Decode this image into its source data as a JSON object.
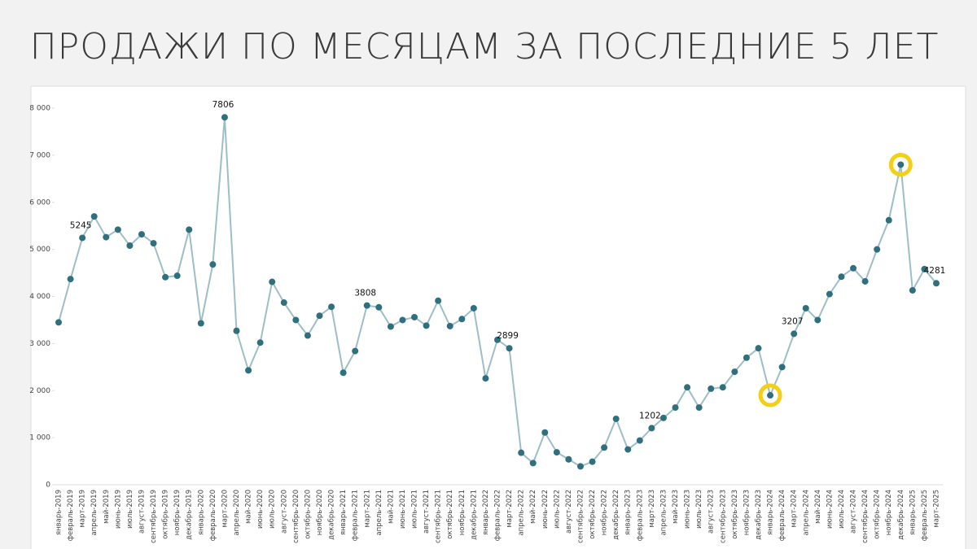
{
  "chart_data": {
    "type": "line",
    "title": "ПРОДАЖИ ПО МЕСЯЦАМ ЗА ПОСЛЕДНИЕ 5 ЛЕТ",
    "categories": [
      "январь-2019",
      "февраль-2019",
      "март-2019",
      "апрель-2019",
      "май-2019",
      "июнь-2019",
      "июль-2019",
      "август-2019",
      "сентябрь-2019",
      "октябрь-2019",
      "ноябрь-2019",
      "декабрь-2019",
      "январь-2020",
      "февраль-2020",
      "март-2020",
      "апрель-2020",
      "май-2020",
      "июнь-2020",
      "июль-2020",
      "август-2020",
      "сентябрь-2020",
      "октябрь-2020",
      "ноябрь-2020",
      "декабрь-2020",
      "январь-2021",
      "февраль-2021",
      "март-2021",
      "апрель-2021",
      "май-2021",
      "июнь-2021",
      "июль-2021",
      "август-2021",
      "сентябрь-2021",
      "октябрь-2021",
      "ноябрь-2021",
      "декабрь-2021",
      "январь-2022",
      "февраль-2022",
      "март-2022",
      "апрель-2022",
      "май-2022",
      "июнь-2022",
      "июль-2022",
      "август-2022",
      "сентябрь-2022",
      "октябрь-2022",
      "ноябрь-2022",
      "декабрь-2022",
      "январь-2023",
      "февраль-2023",
      "март-2023",
      "апрель-2023",
      "май-2023",
      "июнь-2023",
      "июль-2023",
      "август-2023",
      "сентябрь-2023",
      "октябрь-2023",
      "ноябрь-2023",
      "декабрь-2023",
      "январь-2024",
      "февраль-2024",
      "март-2024",
      "апрель-2024",
      "май-2024",
      "июнь-2024",
      "июль-2024",
      "август-2024",
      "сентябрь-2024",
      "октябрь-2024",
      "ноябрь-2024",
      "декабрь-2024",
      "январь-2025",
      "февраль-2025",
      "март-2025"
    ],
    "values": [
      3450,
      4370,
      5245,
      5700,
      5260,
      5420,
      5080,
      5320,
      5130,
      4410,
      4440,
      5420,
      3430,
      4680,
      7806,
      3270,
      2430,
      3020,
      4310,
      3870,
      3500,
      3170,
      3590,
      3780,
      2380,
      2840,
      3808,
      3770,
      3360,
      3500,
      3560,
      3380,
      3910,
      3370,
      3520,
      3750,
      2260,
      3080,
      2899,
      680,
      460,
      1110,
      690,
      540,
      390,
      490,
      790,
      1400,
      750,
      940,
      1202,
      1420,
      1640,
      2070,
      1640,
      2040,
      2070,
      2400,
      2700,
      2900,
      1900,
      2500,
      3207,
      3750,
      3500,
      4050,
      4420,
      4600,
      4320,
      5000,
      5620,
      6800,
      4130,
      4580,
      4281
    ],
    "value_labels": [
      null,
      null,
      "5245",
      null,
      null,
      null,
      null,
      null,
      null,
      null,
      null,
      null,
      null,
      null,
      "7806",
      null,
      null,
      null,
      null,
      null,
      null,
      null,
      null,
      null,
      null,
      null,
      "3808",
      null,
      null,
      null,
      null,
      null,
      null,
      null,
      null,
      null,
      null,
      null,
      "2899",
      null,
      null,
      null,
      null,
      null,
      null,
      null,
      null,
      null,
      null,
      null,
      "1202",
      null,
      null,
      null,
      null,
      null,
      null,
      null,
      null,
      null,
      null,
      null,
      "3207",
      null,
      null,
      null,
      null,
      null,
      null,
      null,
      null,
      null,
      null,
      null,
      "4281"
    ],
    "line_color": "#9dbec6",
    "marker_color": "#2f6f7e",
    "highlights": [
      60,
      71
    ],
    "highlight_color": "#f3cf1a",
    "ylim": [
      0,
      8000
    ],
    "yticks": [
      0,
      {
        "value": 1000,
        "label": "1 000"
      },
      {
        "value": 2000,
        "label": "2 000"
      },
      {
        "value": 3000,
        "label": "3 000"
      },
      {
        "value": 4000,
        "label": "4 000"
      },
      {
        "value": 5000,
        "label": "5 000"
      },
      {
        "value": 6000,
        "label": "6 000"
      },
      {
        "value": 7000,
        "label": "7 000"
      },
      {
        "value": 8000,
        "label": "8 000"
      }
    ]
  }
}
